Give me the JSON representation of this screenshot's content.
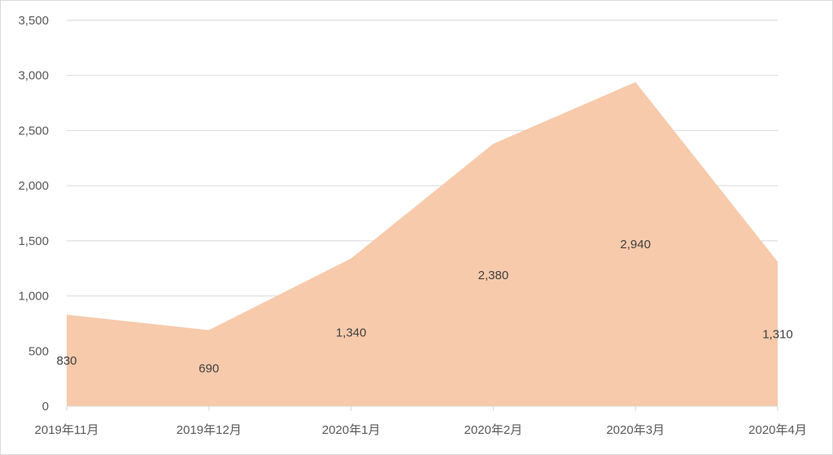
{
  "chart_data": {
    "type": "area",
    "categories": [
      "2019年11月",
      "2019年12月",
      "2020年1月",
      "2020年2月",
      "2020年3月",
      "2020年4月"
    ],
    "values": [
      830,
      690,
      1340,
      2380,
      2940,
      1310
    ],
    "data_labels": [
      "830",
      "690",
      "1,340",
      "2,380",
      "2,940",
      "1,310"
    ],
    "ylim": [
      0,
      3500
    ],
    "y_ticks": [
      0,
      500,
      1000,
      1500,
      2000,
      2500,
      3000,
      3500
    ],
    "y_tick_labels": [
      "0",
      "500",
      "1,000",
      "1,500",
      "2,000",
      "2,500",
      "3,000",
      "3,500"
    ],
    "grid": true,
    "legend": "none",
    "fill_color": "#f7caab"
  }
}
